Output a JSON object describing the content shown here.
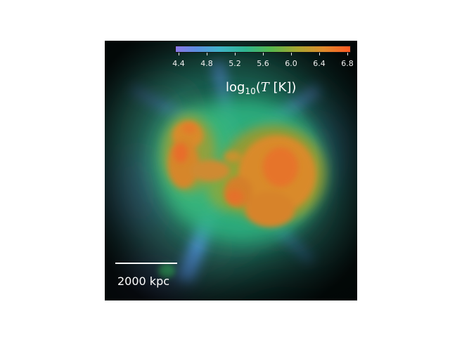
{
  "colorbar": {
    "ticks": [
      "4.4",
      "4.8",
      "5.2",
      "5.6",
      "6.0",
      "6.4",
      "6.8"
    ],
    "label_prefix": "log",
    "label_sub": "10",
    "label_open": "(",
    "label_var": "T",
    "label_unit": " [K]",
    "label_close": ")",
    "colors": [
      "#8a78e6",
      "#3fb3c8",
      "#2fb58f",
      "#a9a630",
      "#ff5a23"
    ]
  },
  "scalebar": {
    "label": "2000 kpc"
  }
}
